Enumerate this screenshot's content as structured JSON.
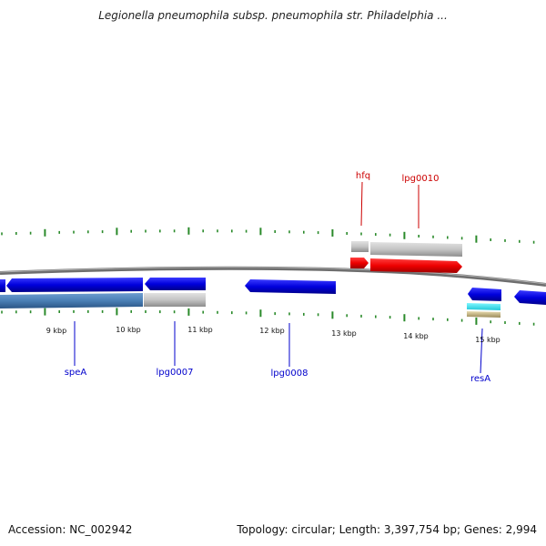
{
  "title": "Legionella pneumophila subsp. pneumophila str. Philadelphia ...",
  "footer": {
    "accession": "Accession: NC_002942",
    "topology": "Topology: circular; Length: 3,397,754 bp; Genes: 2,994"
  },
  "colors": {
    "forward_cds": "#ff0000",
    "reverse_cds": "#0000ff",
    "gene_grey": "#c0c0c0",
    "gene_steelblue": "#4a7fb5",
    "tick_green": "#2a8a2a",
    "backbone": "#808080",
    "label_red": "#cc0000",
    "label_blue": "#0000cc"
  },
  "scale": {
    "unit": "kbp",
    "labels": [
      "9 kbp",
      "10 kbp",
      "11 kbp",
      "12 kbp",
      "13 kbp",
      "14 kbp",
      "15 kbp"
    ]
  },
  "features": [
    {
      "name": "speA",
      "strand": "reverse",
      "color": "blue"
    },
    {
      "name": "lpg0007",
      "strand": "reverse",
      "color": "blue"
    },
    {
      "name": "lpg0008",
      "strand": "reverse",
      "color": "blue"
    },
    {
      "name": "hfq",
      "strand": "forward",
      "color": "red"
    },
    {
      "name": "lpg0010",
      "strand": "forward",
      "color": "red"
    },
    {
      "name": "resA",
      "strand": "reverse",
      "color": "blue"
    }
  ]
}
